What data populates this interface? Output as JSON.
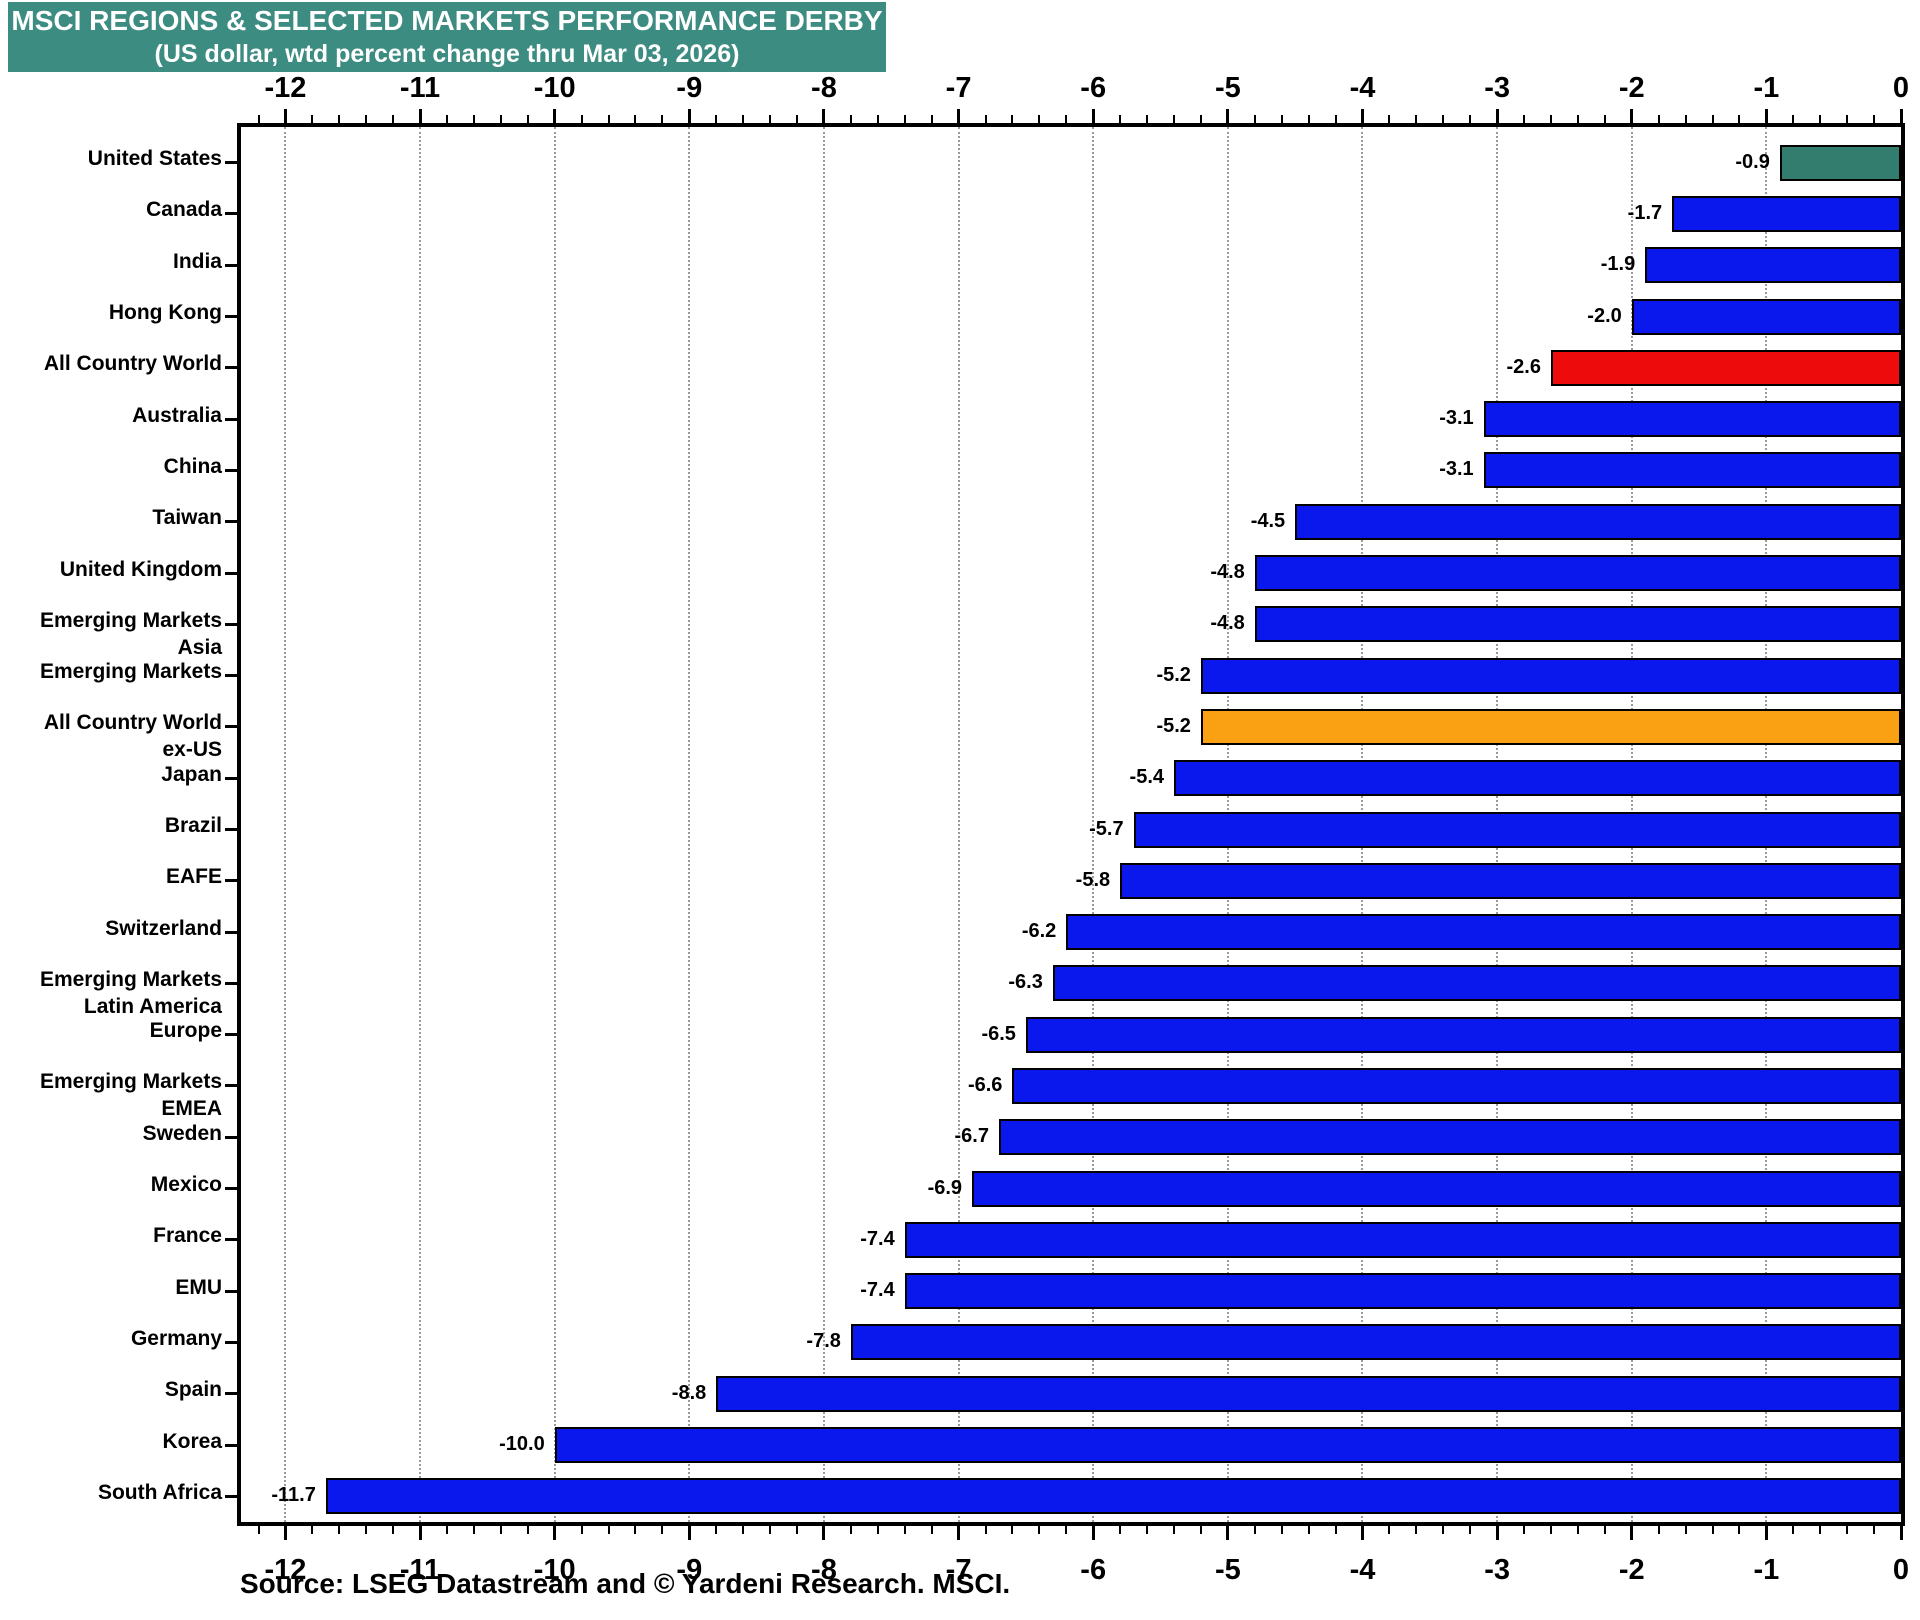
{
  "header": {
    "title": "MSCI REGIONS & SELECTED MARKETS PERFORMANCE DERBY",
    "subtitle": "(US dollar, wtd percent change thru Mar 03, 2026)"
  },
  "source_note": "Source: LSEG Datastream and © Yardeni Research. MSCI.",
  "colors": {
    "header_bg": "#3D8C82",
    "header_text": "#FFFFFF",
    "bar_default": "#0A18EE",
    "bar_us": "#337D6E",
    "bar_acw": "#EE0B0B",
    "bar_acw_ex_us": "#F9A013",
    "grid": "#9A9A9A",
    "axis": "#000000"
  },
  "chart_data": {
    "type": "bar",
    "orientation": "horizontal",
    "title": "MSCI REGIONS & SELECTED MARKETS PERFORMANCE DERBY",
    "subtitle": "(US dollar, wtd percent change thru Mar 03, 2026)",
    "xlabel": "",
    "ylabel": "",
    "xlim": [
      -12.33,
      0
    ],
    "x_ticks": [
      -12,
      -11,
      -10,
      -9,
      -8,
      -7,
      -6,
      -5,
      -4,
      -3,
      -2,
      -1,
      0
    ],
    "grid": "vertical dotted gridlines at integer ticks, x-axis labeled on top and bottom",
    "legend": "none",
    "categories": [
      "United States",
      "Canada",
      "India",
      "Hong Kong",
      "All Country World",
      "Australia",
      "China",
      "Taiwan",
      "United Kingdom",
      "Emerging Markets\nAsia",
      "Emerging Markets",
      "All Country World\nex-US",
      "Japan",
      "Brazil",
      "EAFE",
      "Switzerland",
      "Emerging Markets\nLatin America",
      "Europe",
      "Emerging Markets\nEMEA",
      "Sweden",
      "Mexico",
      "France",
      "EMU",
      "Germany",
      "Spain",
      "Korea",
      "South Africa"
    ],
    "values": [
      -0.9,
      -1.7,
      -1.9,
      -2.0,
      -2.6,
      -3.1,
      -3.1,
      -4.5,
      -4.8,
      -4.8,
      -5.2,
      -5.2,
      -5.4,
      -5.7,
      -5.8,
      -6.2,
      -6.3,
      -6.5,
      -6.6,
      -6.7,
      -6.9,
      -7.4,
      -7.4,
      -7.8,
      -8.8,
      -10.0,
      -11.7
    ],
    "data_labels": [
      "-0.9",
      "-1.7",
      "-1.9",
      "-2.0",
      "-2.6",
      "-3.1",
      "-3.1",
      "-4.5",
      "-4.8",
      "-4.8",
      "-5.2",
      "-5.2",
      "-5.4",
      "-5.7",
      "-5.8",
      "-6.2",
      "-6.3",
      "-6.5",
      "-6.6",
      "-6.7",
      "-6.9",
      "-7.4",
      "-7.4",
      "-7.8",
      "-8.8",
      "-10.0",
      "-11.7"
    ],
    "bar_color_keys": [
      "bar_us",
      "bar_default",
      "bar_default",
      "bar_default",
      "bar_acw",
      "bar_default",
      "bar_default",
      "bar_default",
      "bar_default",
      "bar_default",
      "bar_default",
      "bar_acw_ex_us",
      "bar_default",
      "bar_default",
      "bar_default",
      "bar_default",
      "bar_default",
      "bar_default",
      "bar_default",
      "bar_default",
      "bar_default",
      "bar_default",
      "bar_default",
      "bar_default",
      "bar_default",
      "bar_default",
      "bar_default"
    ]
  }
}
